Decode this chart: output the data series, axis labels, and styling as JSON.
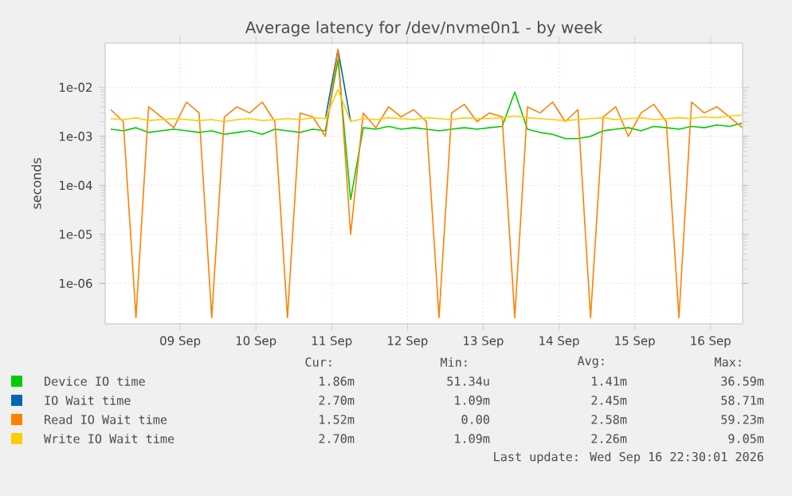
{
  "chart_data": {
    "type": "line",
    "title": "Average latency for /dev/nvme0n1 - by week",
    "ylabel": "seconds",
    "log": true,
    "grid": true,
    "legend": "bottom",
    "x": [
      "2026-09-08T14:00",
      "2026-09-08T18:00",
      "2026-09-08T22:00",
      "2026-09-09T02:00",
      "2026-09-09T06:00",
      "2026-09-09T10:00",
      "2026-09-09T14:00",
      "2026-09-09T18:00",
      "2026-09-09T22:00",
      "2026-09-10T02:00",
      "2026-09-10T06:00",
      "2026-09-10T10:00",
      "2026-09-10T14:00",
      "2026-09-10T18:00",
      "2026-09-10T22:00",
      "2026-09-11T02:00",
      "2026-09-11T06:00",
      "2026-09-11T10:00",
      "2026-09-11T14:00",
      "2026-09-11T18:00",
      "2026-09-11T22:00",
      "2026-09-12T02:00",
      "2026-09-12T06:00",
      "2026-09-12T10:00",
      "2026-09-12T14:00",
      "2026-09-12T18:00",
      "2026-09-12T22:00",
      "2026-09-13T02:00",
      "2026-09-13T06:00",
      "2026-09-13T10:00",
      "2026-09-13T14:00",
      "2026-09-13T18:00",
      "2026-09-13T22:00",
      "2026-09-14T02:00",
      "2026-09-14T06:00",
      "2026-09-14T10:00",
      "2026-09-14T14:00",
      "2026-09-14T18:00",
      "2026-09-14T22:00",
      "2026-09-15T02:00",
      "2026-09-15T06:00",
      "2026-09-15T10:00",
      "2026-09-15T14:00",
      "2026-09-15T18:00",
      "2026-09-15T22:00",
      "2026-09-16T02:00",
      "2026-09-16T06:00",
      "2026-09-16T10:00",
      "2026-09-16T14:00",
      "2026-09-16T18:00",
      "2026-09-16T22:00"
    ],
    "series": [
      {
        "name": "Device IO time",
        "color": "#00cc00",
        "values": [
          0.0014,
          0.0013,
          0.0015,
          0.0012,
          0.0013,
          0.0014,
          0.0013,
          0.0012,
          0.0013,
          0.0011,
          0.0012,
          0.0013,
          0.0011,
          0.0014,
          0.0013,
          0.0012,
          0.0014,
          0.0013,
          0.0366,
          5.1e-05,
          0.0015,
          0.0014,
          0.0016,
          0.0014,
          0.0015,
          0.0014,
          0.0013,
          0.0014,
          0.0015,
          0.0014,
          0.0015,
          0.0016,
          0.008,
          0.0014,
          0.0012,
          0.0011,
          0.0009,
          0.0009,
          0.001,
          0.0013,
          0.0014,
          0.0015,
          0.0013,
          0.0016,
          0.0015,
          0.0014,
          0.0016,
          0.0015,
          0.0017,
          0.0016,
          0.00186
        ]
      },
      {
        "name": "IO Wait time",
        "color": "#0066b3",
        "values": [
          null,
          null,
          null,
          null,
          null,
          null,
          null,
          null,
          null,
          null,
          null,
          null,
          null,
          null,
          null,
          null,
          null,
          0.0023,
          0.0587,
          0.002,
          null,
          null,
          null,
          null,
          null,
          null,
          null,
          null,
          null,
          null,
          null,
          null,
          null,
          null,
          null,
          null,
          null,
          null,
          null,
          null,
          null,
          null,
          null,
          null,
          null,
          null,
          null,
          null,
          null,
          null,
          null
        ]
      },
      {
        "name": "Read IO Wait time",
        "color": "#ff8000",
        "values": [
          0.0035,
          0.002,
          2e-07,
          0.004,
          0.0025,
          0.0015,
          0.005,
          0.003,
          2e-07,
          0.0025,
          0.004,
          0.003,
          0.005,
          0.002,
          2e-07,
          0.003,
          0.0025,
          0.001,
          0.0592,
          1e-05,
          0.003,
          0.0015,
          0.004,
          0.0025,
          0.0035,
          0.002,
          2e-07,
          0.003,
          0.0045,
          0.002,
          0.003,
          0.0025,
          2e-07,
          0.004,
          0.003,
          0.005,
          0.002,
          0.0035,
          2e-07,
          0.0025,
          0.004,
          0.001,
          0.003,
          0.0045,
          0.002,
          2e-07,
          0.005,
          0.003,
          0.004,
          0.0025,
          0.00152
        ]
      },
      {
        "name": "Write IO Wait time",
        "color": "#ffcc00",
        "values": [
          0.0023,
          0.0022,
          0.0024,
          0.0021,
          0.0022,
          0.0023,
          0.0022,
          0.0021,
          0.0022,
          0.002,
          0.0022,
          0.0023,
          0.0021,
          0.0022,
          0.0023,
          0.0022,
          0.0024,
          0.0023,
          0.00905,
          0.002,
          0.0023,
          0.0022,
          0.0024,
          0.0023,
          0.0022,
          0.0024,
          0.0023,
          0.0022,
          0.0024,
          0.0023,
          0.0023,
          0.0024,
          0.0026,
          0.0024,
          0.0023,
          0.0022,
          0.0021,
          0.0022,
          0.0023,
          0.0024,
          0.0022,
          0.0023,
          0.0024,
          0.0022,
          0.0023,
          0.0024,
          0.0023,
          0.0025,
          0.0024,
          0.0026,
          0.0027
        ]
      }
    ],
    "xlim": [
      "2026-09-08T12:15",
      "2026-09-16T22:10"
    ],
    "xticks": [
      {
        "value": "2026-09-09T12:00",
        "label": "09 Sep"
      },
      {
        "value": "2026-09-10T12:00",
        "label": "10 Sep"
      },
      {
        "value": "2026-09-11T12:00",
        "label": "11 Sep"
      },
      {
        "value": "2026-09-12T12:00",
        "label": "12 Sep"
      },
      {
        "value": "2026-09-13T12:00",
        "label": "13 Sep"
      },
      {
        "value": "2026-09-14T12:00",
        "label": "14 Sep"
      },
      {
        "value": "2026-09-15T12:00",
        "label": "15 Sep"
      },
      {
        "value": "2026-09-16T12:00",
        "label": "16 Sep"
      }
    ],
    "ylim": [
      1.5e-07,
      0.08
    ],
    "yticks": [
      {
        "value": 1e-06,
        "label": "1e-06"
      },
      {
        "value": 1e-05,
        "label": "1e-05"
      },
      {
        "value": 0.0001,
        "label": "1e-04"
      },
      {
        "value": 0.001,
        "label": "1e-03"
      },
      {
        "value": 0.01,
        "label": "1e-02"
      }
    ],
    "annotations": [
      "Cur:",
      "Min:",
      "Avg:",
      "Max:",
      "1.86m",
      "51.34u",
      "1.41m",
      "36.59m",
      "2.70m",
      "1.09m",
      "2.45m",
      "58.71m",
      "1.52m",
      "0.00",
      "2.58m",
      "59.23m",
      "2.70m",
      "1.09m",
      "2.26m",
      "9.05m",
      "Last update: Wed Sep 16 22:30:01 2026"
    ]
  }
}
